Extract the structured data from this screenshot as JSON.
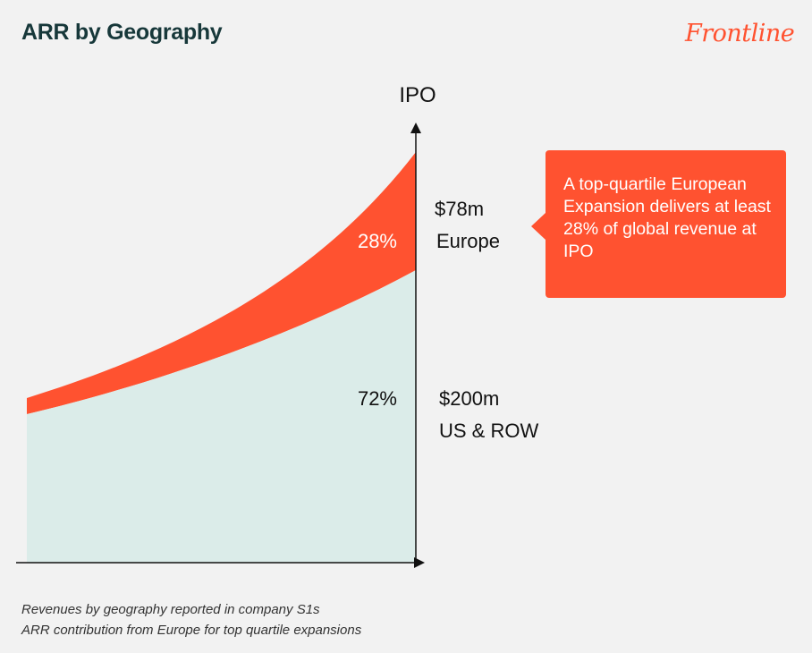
{
  "title": "ARR by Geography",
  "logo_text": "Frontline",
  "chart_data": {
    "type": "area",
    "stacked": true,
    "marker_label": "IPO",
    "series": [
      {
        "key": "us",
        "share": "72%",
        "value": 200,
        "value_label": "$200m",
        "region_label": "US & ROW",
        "color": "#dbece9"
      },
      {
        "key": "europe",
        "share": "28%",
        "value": 78,
        "value_label": "$78m",
        "region_label": "Europe",
        "color": "#ff5230"
      }
    ]
  },
  "callout": {
    "text": "A top-quartile European Expansion delivers at least 28% of global revenue at IPO",
    "color": "#ff5230"
  },
  "footnotes": [
    "Revenues by geography reported in company S1s",
    "ARR contribution from Europe for top quartile expansions"
  ],
  "colors": {
    "title": "#17383a",
    "axis": "#111111"
  }
}
